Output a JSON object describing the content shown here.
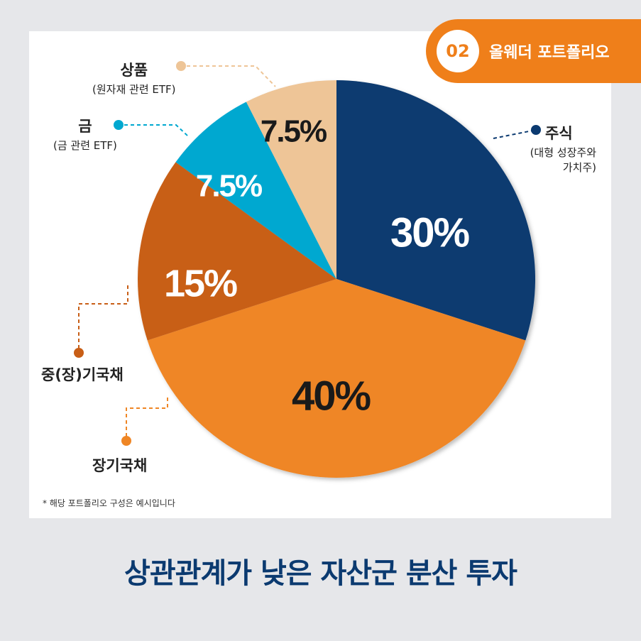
{
  "badge": {
    "number": "02",
    "title": "올웨더 포트폴리오"
  },
  "chart_data": {
    "type": "pie",
    "slices": [
      {
        "label": "주식",
        "sublabel": "(대형 성장주와 가치주)",
        "value": 30,
        "display": "30%",
        "color": "#0b3a70"
      },
      {
        "label": "장기국채",
        "sublabel": "",
        "value": 40,
        "display": "40%",
        "color": "#ef8625"
      },
      {
        "label": "중(장)기국채",
        "sublabel": "",
        "value": 15,
        "display": "15%",
        "color": "#c85e16"
      },
      {
        "label": "금",
        "sublabel": "(금 관련 ETF)",
        "value": 7.5,
        "display": "7.5%",
        "color": "#00a8d0"
      },
      {
        "label": "상품",
        "sublabel": "(원자재 관련 ETF)",
        "value": 7.5,
        "display": "7.5%",
        "color": "#eec597"
      }
    ]
  },
  "labels": {
    "stocks": {
      "main": "주식",
      "sub1": "(대형 성장주와",
      "sub2": "가치주)"
    },
    "long_bond": {
      "main": "장기국채"
    },
    "mid_bond": {
      "main": "중(장)기국채"
    },
    "gold": {
      "main": "금",
      "sub": "(금 관련 ETF)"
    },
    "commodity": {
      "main": "상품",
      "sub": "(원자재 관련 ETF)"
    }
  },
  "note": "*  해당 포트폴리오 구성은 예시입니다",
  "footer": "상관관계가 낮은 자산군 분산 투자"
}
